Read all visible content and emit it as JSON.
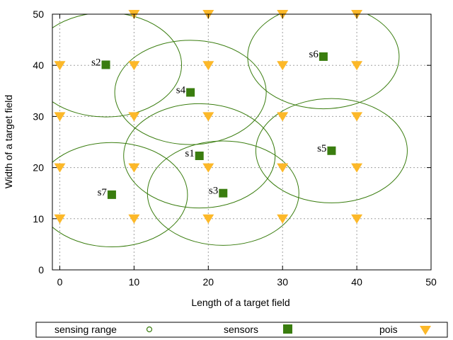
{
  "chart_data": {
    "type": "scatter",
    "xlabel": "Length of a target field",
    "ylabel": "Width of a target field",
    "xlim": [
      -1,
      50
    ],
    "ylim": [
      0,
      50
    ],
    "x_ticks": [
      0,
      10,
      20,
      30,
      40,
      50
    ],
    "y_ticks": [
      0,
      10,
      20,
      30,
      40,
      50
    ],
    "grid": true,
    "legend_position": "bottom",
    "legend": [
      {
        "label": "sensing range",
        "marker": "circle",
        "color": "#3a7d0f"
      },
      {
        "label": "sensors",
        "marker": "square",
        "color": "#3a7d0f"
      },
      {
        "label": "pois",
        "marker": "triangle-down",
        "color": "#fcb829"
      }
    ],
    "series": [
      {
        "name": "sensors",
        "color": "#3a7d0f",
        "points": [
          {
            "label": "s1",
            "x": 18.8,
            "y": 22.3
          },
          {
            "label": "s2",
            "x": 6.2,
            "y": 40.1
          },
          {
            "label": "s3",
            "x": 22.0,
            "y": 15.0
          },
          {
            "label": "s4",
            "x": 17.6,
            "y": 34.7
          },
          {
            "label": "s5",
            "x": 36.6,
            "y": 23.3
          },
          {
            "label": "s6",
            "x": 35.5,
            "y": 41.7
          },
          {
            "label": "s7",
            "x": 7.0,
            "y": 14.7
          }
        ]
      },
      {
        "name": "sensing range",
        "color": "#3a7d0f",
        "circles": [
          {
            "x": 18.8,
            "y": 22.3,
            "r": 10.2
          },
          {
            "x": 22.0,
            "y": 15.0,
            "r": 10.2
          },
          {
            "x": 17.6,
            "y": 34.7,
            "r": 10.2
          },
          {
            "x": 36.6,
            "y": 23.3,
            "r": 10.2
          },
          {
            "x": 35.5,
            "y": 41.7,
            "r": 10.2
          },
          {
            "x": 7.0,
            "y": 14.7,
            "r": 10.2
          },
          {
            "x": 6.2,
            "y": 40.1,
            "r": 10.2
          }
        ]
      },
      {
        "name": "pois",
        "color": "#fcb829",
        "points": [
          {
            "x": 0,
            "y": 10
          },
          {
            "x": 0,
            "y": 20
          },
          {
            "x": 0,
            "y": 30
          },
          {
            "x": 0,
            "y": 40
          },
          {
            "x": 10,
            "y": 10
          },
          {
            "x": 10,
            "y": 20
          },
          {
            "x": 10,
            "y": 30
          },
          {
            "x": 10,
            "y": 40
          },
          {
            "x": 10,
            "y": 50
          },
          {
            "x": 20,
            "y": 10
          },
          {
            "x": 20,
            "y": 20
          },
          {
            "x": 20,
            "y": 30
          },
          {
            "x": 20,
            "y": 40
          },
          {
            "x": 20,
            "y": 50
          },
          {
            "x": 30,
            "y": 10
          },
          {
            "x": 30,
            "y": 20
          },
          {
            "x": 30,
            "y": 30
          },
          {
            "x": 30,
            "y": 40
          },
          {
            "x": 30,
            "y": 50
          },
          {
            "x": 40,
            "y": 10
          },
          {
            "x": 40,
            "y": 20
          },
          {
            "x": 40,
            "y": 30
          },
          {
            "x": 40,
            "y": 40
          },
          {
            "x": 40,
            "y": 50
          }
        ]
      }
    ]
  }
}
